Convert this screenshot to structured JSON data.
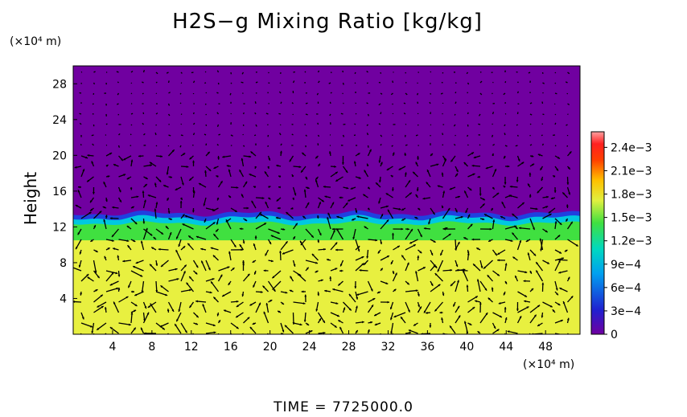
{
  "chart_data": {
    "type": "heatmap",
    "title": "H2S−g Mixing Ratio [kg/kg]",
    "ylabel": "Height",
    "y_unit_label": "(×10⁴ m)",
    "x_unit_label": "(×10⁴ m)",
    "xlim": [
      0,
      51.5
    ],
    "ylim": [
      0,
      30
    ],
    "x_ticks": [
      "4",
      "8",
      "12",
      "16",
      "20",
      "24",
      "28",
      "32",
      "36",
      "40",
      "44",
      "48"
    ],
    "y_ticks": [
      "4",
      "8",
      "12",
      "16",
      "20",
      "24",
      "28"
    ],
    "x_tick_values": [
      4,
      8,
      12,
      16,
      20,
      24,
      28,
      32,
      36,
      40,
      44,
      48
    ],
    "y_tick_values": [
      4,
      8,
      12,
      16,
      20,
      24,
      28
    ],
    "colorbar": {
      "min": 0,
      "max": 0.0026,
      "labels": [
        "2.4e−3",
        "2.1e−3",
        "1.8e−3",
        "1.5e−3",
        "1.2e−3",
        "9e−4",
        "6e−4",
        "3e−4",
        "0"
      ],
      "label_values": [
        0.0024,
        0.0021,
        0.0018,
        0.0015,
        0.0012,
        0.0009,
        0.0006,
        0.0003,
        0
      ]
    },
    "regions": {
      "lower_layer_top_height": 10.5,
      "transition_top_height": 13.5,
      "lower_layer_value": 0.0017,
      "upper_layer_value": 0
    },
    "time_label": "TIME  =  7725000.0"
  },
  "colors": {
    "upper": "#7000a0",
    "lower": "#e8f040",
    "transition_green": "#40e040",
    "transition_cyan": "#00c8e0",
    "transition_blue": "#2040e0",
    "arrow": "#000000"
  }
}
